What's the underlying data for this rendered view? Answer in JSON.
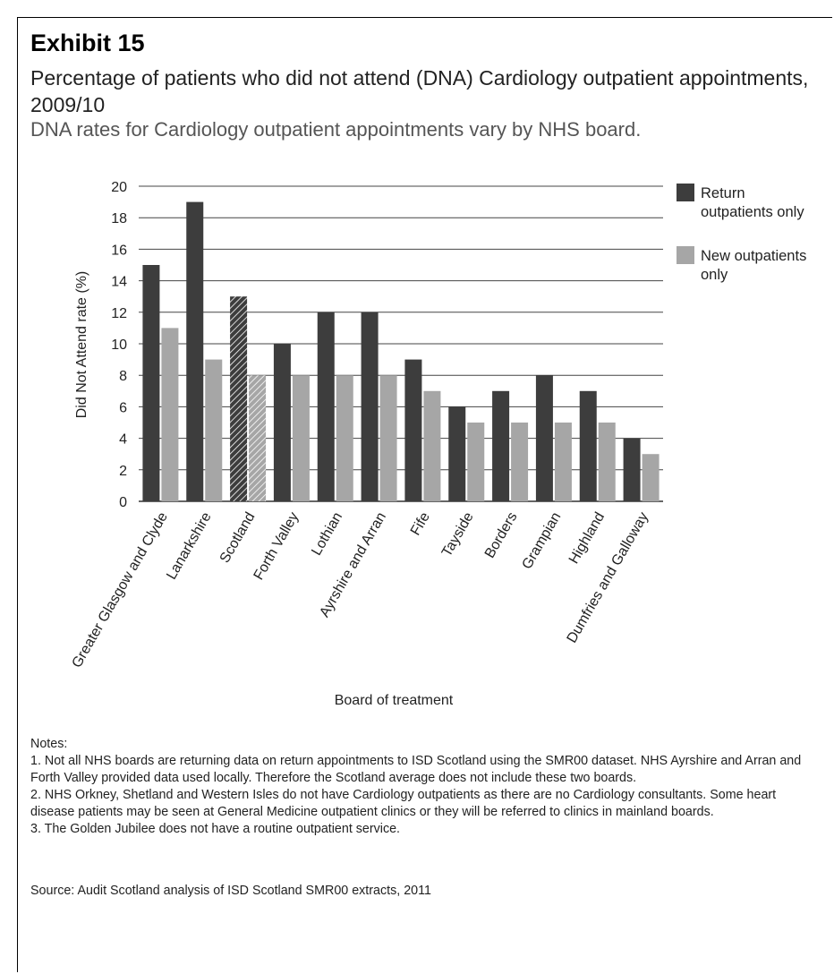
{
  "exhibit_label": "Exhibit 15",
  "subtitle": "Percentage of patients who did not attend (DNA) Cardiology outpatient appointments, 2009/10",
  "caption": "DNA rates for Cardiology outpatient appointments vary by NHS board.",
  "chart_data": {
    "type": "bar",
    "ylabel": "Did Not Attend rate (%)",
    "xlabel": "Board of treatment",
    "ylim": [
      0,
      20
    ],
    "yticks": [
      0,
      2,
      4,
      6,
      8,
      10,
      12,
      14,
      16,
      18,
      20
    ],
    "grid": true,
    "legend_position": "right",
    "categories": [
      "Greater Glasgow and Clyde",
      "Lanarkshire",
      "Scotland",
      "Forth Valley",
      "Lothian",
      "Ayrshire and Arran",
      "Fife",
      "Tayside",
      "Borders",
      "Grampian",
      "Highland",
      "Dumfries and Galloway"
    ],
    "highlight_category": "Scotland",
    "series": [
      {
        "name": "Return outpatients only",
        "color": "#3d3d3d",
        "values": [
          15,
          19,
          13,
          10,
          12,
          12,
          9,
          6,
          7,
          8,
          7,
          4
        ]
      },
      {
        "name": "New outpatients only",
        "color": "#a6a6a6",
        "values": [
          11,
          9,
          8,
          8,
          8,
          8,
          7,
          5,
          5,
          5,
          5,
          3
        ]
      }
    ]
  },
  "notes": {
    "heading": "Notes:",
    "items": [
      "1. Not all NHS boards are returning data on return appointments to ISD Scotland using the SMR00 dataset. NHS Ayrshire and Arran and Forth Valley provided data used locally. Therefore the Scotland average does not include these two boards.",
      "2. NHS Orkney, Shetland and Western Isles do not have Cardiology outpatients as there are no Cardiology consultants. Some heart disease patients may be seen at General Medicine outpatient clinics or they will be referred to clinics in mainland boards.",
      "3. The Golden Jubilee does not have a routine outpatient service."
    ]
  },
  "source": "Source: Audit Scotland analysis of ISD Scotland SMR00 extracts, 2011"
}
